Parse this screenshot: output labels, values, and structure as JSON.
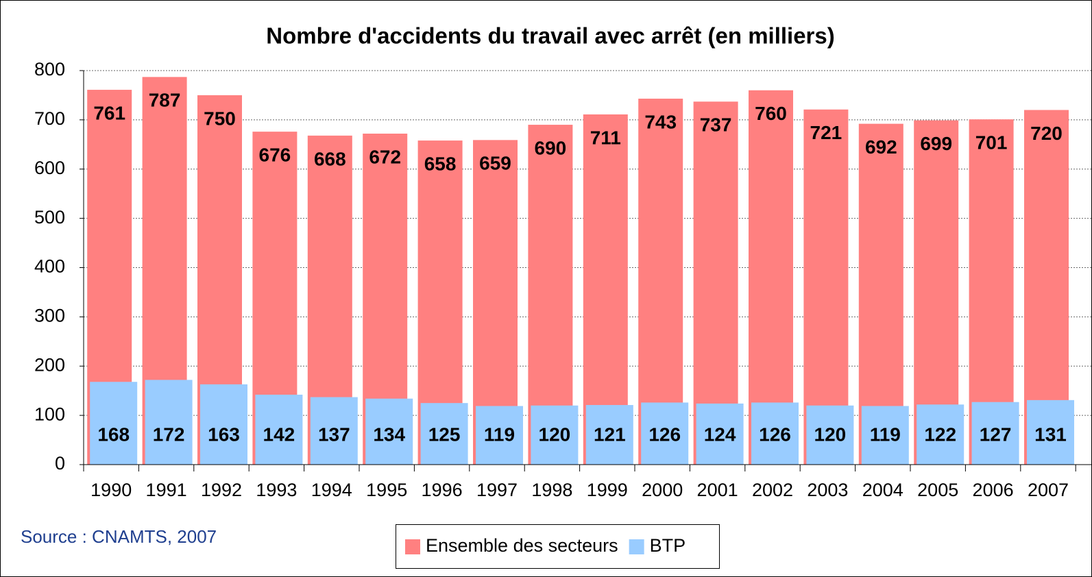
{
  "chart_data": {
    "type": "bar",
    "title": "Nombre d'accidents du travail avec arrêt (en milliers)",
    "source": "Source : CNAMTS, 2007",
    "categories": [
      "1990",
      "1991",
      "1992",
      "1993",
      "1994",
      "1995",
      "1996",
      "1997",
      "1998",
      "1999",
      "2000",
      "2001",
      "2002",
      "2003",
      "2004",
      "2005",
      "2006",
      "2007"
    ],
    "series": [
      {
        "name": "Ensemble des secteurs",
        "color": "#ff8080",
        "values": [
          761,
          787,
          750,
          676,
          668,
          672,
          658,
          659,
          690,
          711,
          743,
          737,
          760,
          721,
          692,
          699,
          701,
          720
        ]
      },
      {
        "name": "BTP",
        "color": "#99ccff",
        "values": [
          168,
          172,
          163,
          142,
          137,
          134,
          125,
          119,
          120,
          121,
          126,
          124,
          126,
          120,
          119,
          122,
          127,
          131
        ]
      }
    ],
    "ylim": [
      0,
      800
    ],
    "yticks": [
      0,
      100,
      200,
      300,
      400,
      500,
      600,
      700,
      800
    ],
    "grid": true
  }
}
